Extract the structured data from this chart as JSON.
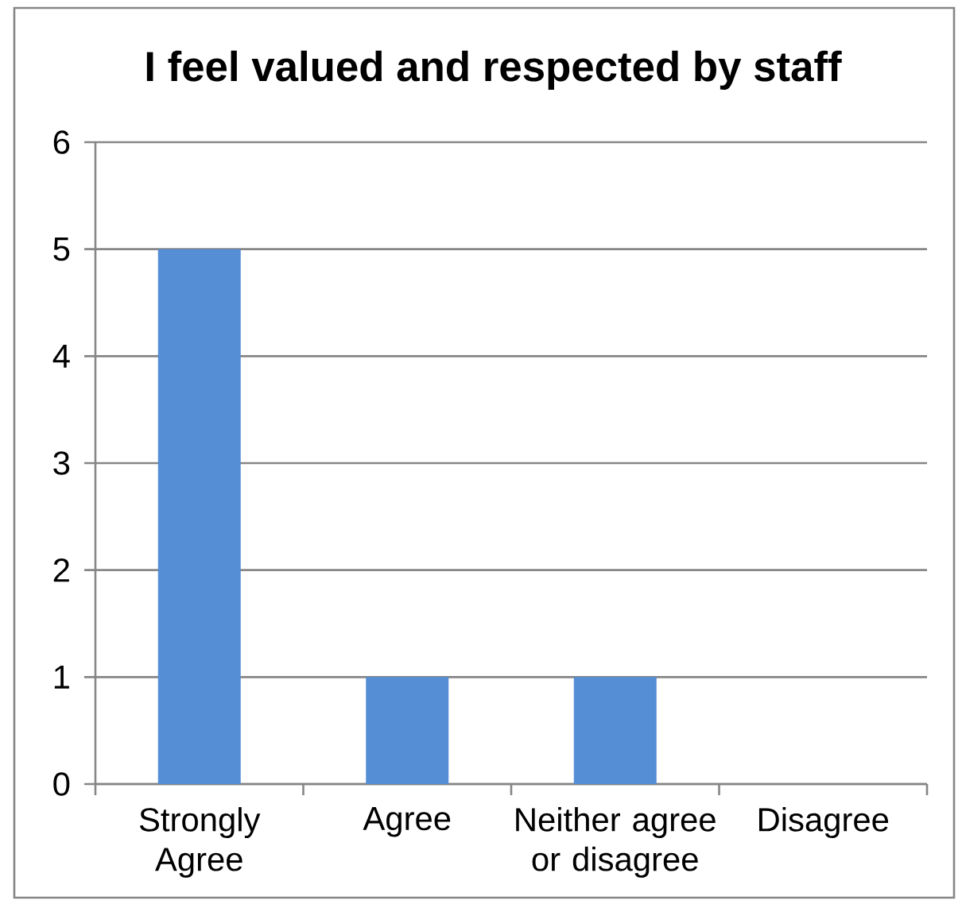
{
  "chart_data": {
    "type": "bar",
    "title": "I feel valued and respected by staff",
    "categories": [
      "Strongly Agree",
      "Agree",
      "Neither agree or disagree",
      "Disagree"
    ],
    "values": [
      5,
      1,
      1,
      0
    ],
    "color": "#558ed5",
    "ylim": [
      0,
      6
    ],
    "yticks": [
      0,
      1,
      2,
      3,
      4,
      5,
      6
    ],
    "grid": "y"
  }
}
